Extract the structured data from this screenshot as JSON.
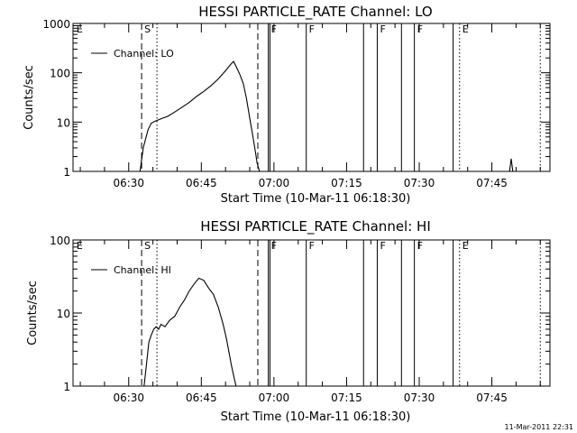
{
  "footer_timestamp": "11-Mar-2011 22:31",
  "chart_data": [
    {
      "type": "line",
      "title": "HESSI PARTICLE_RATE Channel: LO",
      "xlabel": "Start Time (10-Mar-11 06:18:30)",
      "ylabel": "Counts/sec",
      "yscale": "log",
      "ylim": [
        1,
        1000
      ],
      "y_ticks": [
        1,
        10,
        100,
        1000
      ],
      "y_tick_labels": [
        "1",
        "10",
        "100",
        "1000"
      ],
      "xlim": [
        "06:18:30",
        "07:57:00"
      ],
      "x_ticks": [
        "06:30",
        "06:45",
        "07:00",
        "07:15",
        "07:30",
        "07:45"
      ],
      "legend": {
        "label": "Channel: LO",
        "position": "top-left"
      },
      "event_markers": [
        {
          "label": "E",
          "time": "06:18:40",
          "style": "none"
        },
        {
          "label": "S",
          "time": "06:32:40",
          "style": "dashed"
        },
        {
          "label": "",
          "time": "06:35:50",
          "style": "dotted"
        },
        {
          "label": "",
          "time": "06:56:40",
          "style": "dashed"
        },
        {
          "label": "F",
          "time": "06:58:50",
          "style": "solid"
        },
        {
          "label": "",
          "time": "06:59:10",
          "style": "solid"
        },
        {
          "label": "F",
          "time": "07:06:40",
          "style": "solid"
        },
        {
          "label": "",
          "time": "07:18:30",
          "style": "solid"
        },
        {
          "label": "F",
          "time": "07:21:20",
          "style": "solid"
        },
        {
          "label": "",
          "time": "07:26:20",
          "style": "solid"
        },
        {
          "label": "F",
          "time": "07:29:00",
          "style": "solid"
        },
        {
          "label": "",
          "time": "07:37:00",
          "style": "solid"
        },
        {
          "label": "E",
          "time": "07:38:20",
          "style": "dotted"
        },
        {
          "label": "",
          "time": "07:55:00",
          "style": "dotted"
        }
      ],
      "series": [
        {
          "x": [
            "06:32:20",
            "06:33:00",
            "06:34:00",
            "06:34:40",
            "06:35:30",
            "06:37:00",
            "06:38:00",
            "06:39:30",
            "06:41:00",
            "06:42:30",
            "06:44:00",
            "06:45:30",
            "06:47:00",
            "06:48:30",
            "06:50:00",
            "06:51:00",
            "06:51:40",
            "06:52:20",
            "06:53:00",
            "06:53:40",
            "06:54:20",
            "06:55:00",
            "06:55:40",
            "06:56:10",
            "06:56:30",
            "06:57:00"
          ],
          "y": [
            1,
            3,
            7,
            9.5,
            10.5,
            12,
            13,
            16,
            20,
            25,
            33,
            42,
            55,
            75,
            110,
            145,
            170,
            125,
            90,
            60,
            30,
            12,
            5,
            2.5,
            1.5,
            1
          ]
        },
        {
          "x": [
            "07:48:40",
            "07:49:00",
            "07:49:20"
          ],
          "y": [
            1,
            1.8,
            1
          ]
        }
      ]
    },
    {
      "type": "line",
      "title": "HESSI PARTICLE_RATE Channel: HI",
      "xlabel": "Start Time (10-Mar-11 06:18:30)",
      "ylabel": "Counts/sec",
      "yscale": "log",
      "ylim": [
        1,
        100
      ],
      "y_ticks": [
        1,
        10,
        100
      ],
      "y_tick_labels": [
        "1",
        "10",
        "100"
      ],
      "xlim": [
        "06:18:30",
        "07:57:00"
      ],
      "x_ticks": [
        "06:30",
        "06:45",
        "07:00",
        "07:15",
        "07:30",
        "07:45"
      ],
      "legend": {
        "label": "Channel: HI",
        "position": "top-left"
      },
      "event_markers": [
        {
          "label": "E",
          "time": "06:18:40",
          "style": "none"
        },
        {
          "label": "S",
          "time": "06:32:40",
          "style": "dashed"
        },
        {
          "label": "",
          "time": "06:35:50",
          "style": "dotted"
        },
        {
          "label": "",
          "time": "06:56:40",
          "style": "dashed"
        },
        {
          "label": "F",
          "time": "06:58:50",
          "style": "solid"
        },
        {
          "label": "",
          "time": "06:59:10",
          "style": "solid"
        },
        {
          "label": "F",
          "time": "07:06:40",
          "style": "solid"
        },
        {
          "label": "",
          "time": "07:18:30",
          "style": "solid"
        },
        {
          "label": "F",
          "time": "07:21:20",
          "style": "solid"
        },
        {
          "label": "",
          "time": "07:26:20",
          "style": "solid"
        },
        {
          "label": "F",
          "time": "07:29:00",
          "style": "solid"
        },
        {
          "label": "",
          "time": "07:37:00",
          "style": "solid"
        },
        {
          "label": "E",
          "time": "07:38:20",
          "style": "dotted"
        },
        {
          "label": "",
          "time": "07:55:00",
          "style": "dotted"
        }
      ],
      "series": [
        {
          "x": [
            "06:33:10",
            "06:33:40",
            "06:34:10",
            "06:34:40",
            "06:35:10",
            "06:35:40",
            "06:36:10",
            "06:36:40",
            "06:37:30",
            "06:38:30",
            "06:39:30",
            "06:40:30",
            "06:41:30",
            "06:42:30",
            "06:43:30",
            "06:44:30",
            "06:45:30",
            "06:46:30",
            "06:47:30",
            "06:48:30",
            "06:49:30",
            "06:50:10",
            "06:50:40",
            "06:51:10",
            "06:51:40",
            "06:52:10"
          ],
          "y": [
            1,
            2,
            4,
            5,
            6,
            6.5,
            6,
            7,
            6.5,
            8,
            9,
            12,
            15,
            20,
            25,
            30,
            28,
            22,
            18,
            12,
            7,
            4.5,
            3,
            2,
            1.4,
            1
          ]
        }
      ]
    }
  ]
}
